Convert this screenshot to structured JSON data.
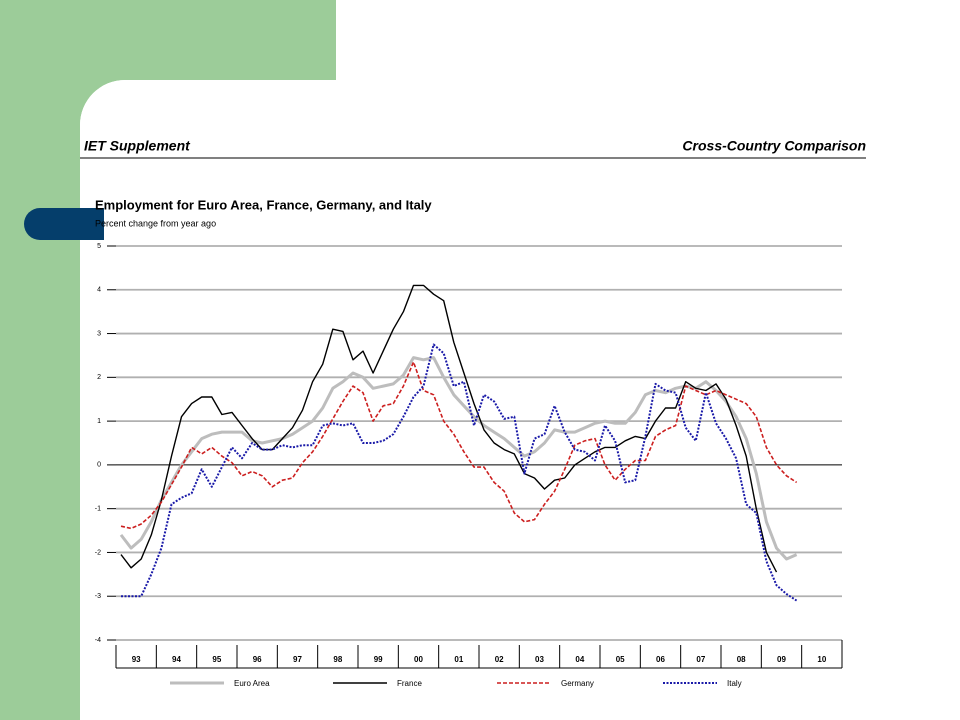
{
  "header": {
    "left": "IET Supplement",
    "right": "Cross-Country Comparison"
  },
  "chart_data": {
    "type": "line",
    "title": "Employment for Euro Area, France, Germany, and Italy",
    "subtitle": "Percent change from year ago",
    "x": [
      1993.125,
      1993.375,
      1993.625,
      1993.875,
      1994.125,
      1994.375,
      1994.625,
      1994.875,
      1995.125,
      1995.375,
      1995.625,
      1995.875,
      1996.125,
      1996.375,
      1996.625,
      1996.875,
      1997.125,
      1997.375,
      1997.625,
      1997.875,
      1998.125,
      1998.375,
      1998.625,
      1998.875,
      1999.125,
      1999.375,
      1999.625,
      1999.875,
      2000.125,
      2000.375,
      2000.625,
      2000.875,
      2001.125,
      2001.375,
      2001.625,
      2001.875,
      2002.125,
      2002.375,
      2002.625,
      2002.875,
      2003.125,
      2003.375,
      2003.625,
      2003.875,
      2004.125,
      2004.375,
      2004.625,
      2004.875,
      2005.125,
      2005.375,
      2005.625,
      2005.875,
      2006.125,
      2006.375,
      2006.625,
      2006.875,
      2007.125,
      2007.375,
      2007.625,
      2007.875,
      2008.125,
      2008.375,
      2008.625,
      2008.875,
      2009.125,
      2009.375,
      2009.625,
      2009.875
    ],
    "xlim": [
      1993,
      2011
    ],
    "xticks": [
      {
        "value": 1993,
        "label": "93"
      },
      {
        "value": 1994,
        "label": "94"
      },
      {
        "value": 1995,
        "label": "95"
      },
      {
        "value": 1996,
        "label": "96"
      },
      {
        "value": 1997,
        "label": "97"
      },
      {
        "value": 1998,
        "label": "98"
      },
      {
        "value": 1999,
        "label": "99"
      },
      {
        "value": 2000,
        "label": "00"
      },
      {
        "value": 2001,
        "label": "01"
      },
      {
        "value": 2002,
        "label": "02"
      },
      {
        "value": 2003,
        "label": "03"
      },
      {
        "value": 2004,
        "label": "04"
      },
      {
        "value": 2005,
        "label": "05"
      },
      {
        "value": 2006,
        "label": "06"
      },
      {
        "value": 2007,
        "label": "07"
      },
      {
        "value": 2008,
        "label": "08"
      },
      {
        "value": 2009,
        "label": "09"
      },
      {
        "value": 2010,
        "label": "10"
      }
    ],
    "ylim": [
      -4,
      5
    ],
    "yticks": [
      5,
      4,
      3,
      2,
      1,
      0,
      -1,
      -2,
      -3,
      -4
    ],
    "grid": true,
    "legend": "bottom",
    "series": [
      {
        "name": "Euro Area",
        "color": "#bdbdbd",
        "style": "thick",
        "values": [
          -1.6,
          -1.9,
          -1.7,
          -1.3,
          -0.8,
          -0.4,
          0.0,
          0.3,
          0.6,
          0.7,
          0.75,
          0.75,
          0.75,
          0.55,
          0.5,
          0.55,
          0.6,
          0.7,
          0.85,
          1.0,
          1.3,
          1.75,
          1.9,
          2.1,
          2.0,
          1.75,
          1.8,
          1.85,
          2.05,
          2.45,
          2.4,
          2.45,
          2.0,
          1.6,
          1.35,
          1.1,
          0.9,
          0.75,
          0.6,
          0.4,
          0.2,
          0.3,
          0.5,
          0.8,
          0.75,
          0.75,
          0.85,
          0.95,
          1.0,
          0.95,
          0.95,
          1.2,
          1.6,
          1.7,
          1.65,
          1.75,
          1.8,
          1.75,
          1.9,
          1.7,
          1.45,
          1.1,
          0.6,
          -0.2,
          -1.3,
          -1.9,
          -2.15,
          -2.05
        ]
      },
      {
        "name": "France",
        "color": "#000000",
        "style": "solid",
        "values": [
          -2.05,
          -2.35,
          -2.15,
          -1.6,
          -0.8,
          0.2,
          1.1,
          1.4,
          1.55,
          1.55,
          1.15,
          1.2,
          0.9,
          0.6,
          0.35,
          0.35,
          0.6,
          0.85,
          1.25,
          1.9,
          2.3,
          3.1,
          3.05,
          2.4,
          2.6,
          2.1,
          2.6,
          3.1,
          3.5,
          4.1,
          4.1,
          3.9,
          3.75,
          2.8,
          2.1,
          1.4,
          0.8,
          0.5,
          0.35,
          0.25,
          -0.2,
          -0.3,
          -0.55,
          -0.35,
          -0.3,
          0.0,
          0.15,
          0.3,
          0.4,
          0.4,
          0.55,
          0.65,
          0.6,
          1.0,
          1.3,
          1.3,
          1.9,
          1.75,
          1.7,
          1.85,
          1.5,
          0.9,
          0.2,
          -1.0,
          -2.0,
          -2.45,
          null,
          null
        ]
      },
      {
        "name": "Germany",
        "color": "#cc1f1f",
        "style": "dashed",
        "values": [
          -1.4,
          -1.45,
          -1.35,
          -1.15,
          -0.85,
          -0.45,
          -0.05,
          0.4,
          0.25,
          0.4,
          0.2,
          0.05,
          -0.25,
          -0.15,
          -0.25,
          -0.5,
          -0.35,
          -0.3,
          0.05,
          0.3,
          0.65,
          1.05,
          1.45,
          1.8,
          1.65,
          1.0,
          1.35,
          1.4,
          1.8,
          2.35,
          1.7,
          1.6,
          1.0,
          0.7,
          0.3,
          -0.05,
          -0.05,
          -0.4,
          -0.6,
          -1.1,
          -1.3,
          -1.25,
          -0.9,
          -0.6,
          -0.1,
          0.45,
          0.55,
          0.6,
          0.0,
          -0.35,
          -0.1,
          0.1,
          0.1,
          0.65,
          0.8,
          0.9,
          1.8,
          1.7,
          1.6,
          1.7,
          1.6,
          1.5,
          1.4,
          1.1,
          0.4,
          0.0,
          -0.25,
          -0.4
        ]
      },
      {
        "name": "Italy",
        "color": "#1a1aa8",
        "style": "dotted",
        "values": [
          -3.0,
          -3.0,
          -3.0,
          -2.5,
          -1.9,
          -0.9,
          -0.75,
          -0.65,
          -0.1,
          -0.5,
          -0.05,
          0.4,
          0.15,
          0.5,
          0.35,
          0.35,
          0.45,
          0.4,
          0.45,
          0.45,
          0.9,
          0.95,
          0.9,
          0.95,
          0.5,
          0.5,
          0.55,
          0.7,
          1.1,
          1.55,
          1.8,
          2.75,
          2.55,
          1.8,
          1.9,
          0.9,
          1.6,
          1.45,
          1.05,
          1.1,
          -0.2,
          0.6,
          0.7,
          1.35,
          0.75,
          0.35,
          0.3,
          0.1,
          0.9,
          0.55,
          -0.4,
          -0.35,
          0.65,
          1.85,
          1.7,
          1.65,
          0.85,
          0.55,
          1.65,
          0.95,
          0.6,
          0.15,
          -0.9,
          -1.1,
          -2.2,
          -2.75,
          -2.95,
          -3.1
        ]
      }
    ]
  }
}
